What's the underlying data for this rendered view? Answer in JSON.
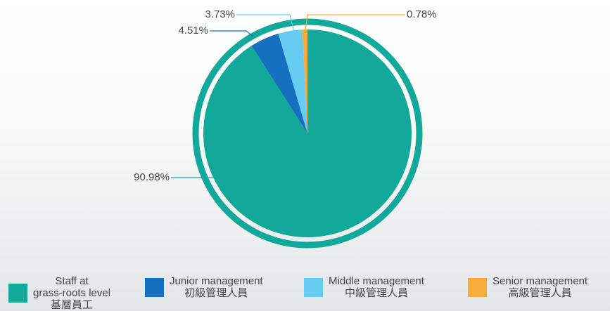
{
  "chart_data": {
    "type": "pie",
    "categories": [
      "Staff at\ngrass-roots level\n基層員工",
      "Junior management\n初級管理人員",
      "Middle management\n中級管理人員",
      "Senior management\n高級管理人員"
    ],
    "values": [
      90.98,
      4.51,
      3.73,
      0.78
    ],
    "value_labels": [
      "90.98%",
      "4.51%",
      "3.73%",
      "0.78%"
    ],
    "colors": [
      "#12a89a",
      "#1570bf",
      "#66ccf2",
      "#f7ad3c"
    ]
  }
}
